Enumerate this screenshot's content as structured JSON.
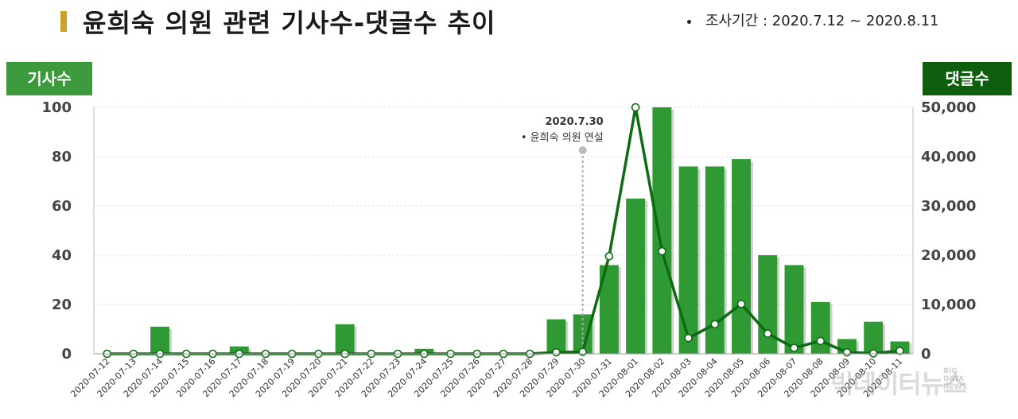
{
  "title": "윤희숙 의원 관련 기사수-댓글수 추이",
  "period": "조사기간 : 2020.7.12 ~ 2020.8.11",
  "left_axis_tag": "기사수",
  "right_axis_tag": "댓글수",
  "watermark": "빅데이터뉴스",
  "watermark_small": [
    "BIG",
    "DATA",
    "NEWS"
  ],
  "colors": {
    "bar": "#2f9a34",
    "line": "#0d6b12",
    "tag_left": "#3c9a3c",
    "tag_right": "#0d5f0d",
    "title_accent": "#c9a227"
  },
  "chart_data": {
    "type": "bar+line",
    "categories": [
      "2020-07-12",
      "2020-07-13",
      "2020-07-14",
      "2020-07-15",
      "2020-07-16",
      "2020-07-17",
      "2020-07-18",
      "2020-07-19",
      "2020-07-20",
      "2020-07-21",
      "2020-07-22",
      "2020-07-23",
      "2020-07-24",
      "2020-07-25",
      "2020-07-26",
      "2020-07-27",
      "2020-07-28",
      "2020-07-29",
      "2020-07-30",
      "2020-07-31",
      "2020-08-01",
      "2020-08-02",
      "2020-08-03",
      "2020-08-04",
      "2020-08-05",
      "2020-08-06",
      "2020-08-07",
      "2020-08-08",
      "2020-08-09",
      "2020-08-10",
      "2020-08-11"
    ],
    "series": [
      {
        "name": "기사수",
        "kind": "bar",
        "axis": "left",
        "values": [
          0,
          0,
          11,
          0,
          0,
          3,
          0,
          0,
          0,
          12,
          0,
          0,
          2,
          0,
          0,
          0,
          0,
          14,
          16,
          36,
          63,
          100,
          76,
          76,
          79,
          40,
          36,
          21,
          6,
          13,
          5
        ]
      },
      {
        "name": "댓글수",
        "kind": "line",
        "axis": "right",
        "values": [
          0,
          0,
          0,
          0,
          0,
          0,
          0,
          0,
          0,
          0,
          0,
          0,
          0,
          0,
          0,
          0,
          0,
          300,
          400,
          19800,
          50000,
          20800,
          3200,
          6000,
          10100,
          4100,
          1200,
          2600,
          300,
          100,
          600
        ]
      }
    ],
    "left_ylim": [
      0,
      100
    ],
    "left_ticks": [
      "0",
      "20",
      "40",
      "60",
      "80",
      "100"
    ],
    "right_ylim": [
      0,
      50000
    ],
    "right_ticks": [
      "0",
      "10,000",
      "20,000",
      "30,000",
      "40,000",
      "50,000"
    ],
    "annotation": {
      "category": "2020-07-30",
      "date": "2020.7.30",
      "text": "• 윤희숙 의원 연설"
    },
    "grid": true,
    "legend": "axis tags top-left and top-right"
  }
}
